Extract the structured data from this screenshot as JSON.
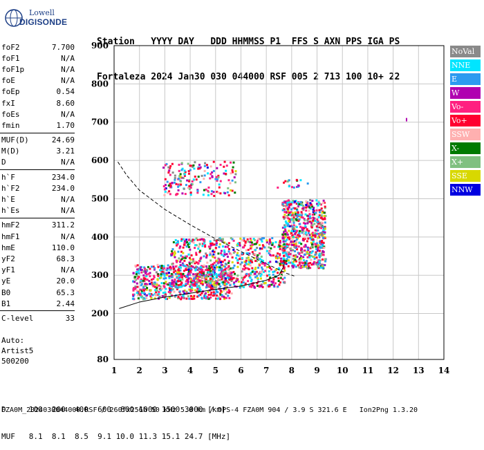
{
  "logo": {
    "line1": "Lowell",
    "line2": "DIGISONDE"
  },
  "header": {
    "line1": "Station   YYYY DAY   DDD HHMMSS P1  FFS S AXN PPS IGA PS",
    "line2": "Fortaleza 2024 Jan30 030 044000 RSF 005 2 713 100 10+ 22"
  },
  "params": [
    {
      "label": "foF2",
      "value": "7.700"
    },
    {
      "label": "foF1",
      "value": "N/A"
    },
    {
      "label": "foF1p",
      "value": "N/A"
    },
    {
      "label": "foE",
      "value": "N/A"
    },
    {
      "label": "foEp",
      "value": "0.54"
    },
    {
      "label": "fxI",
      "value": "8.60"
    },
    {
      "label": "foEs",
      "value": "N/A"
    },
    {
      "label": "fmin",
      "value": "1.70"
    },
    {
      "label": "MUF(D)",
      "value": "24.69"
    },
    {
      "label": "M(D)",
      "value": "3.21"
    },
    {
      "label": "D",
      "value": "N/A"
    },
    {
      "label": "h`F",
      "value": "234.0"
    },
    {
      "label": "h`F2",
      "value": "234.0"
    },
    {
      "label": "h`E",
      "value": "N/A"
    },
    {
      "label": "h`Es",
      "value": "N/A"
    },
    {
      "label": "hmF2",
      "value": "311.2"
    },
    {
      "label": "hmF1",
      "value": "N/A"
    },
    {
      "label": "hmE",
      "value": "110.0"
    },
    {
      "label": "yF2",
      "value": "68.3"
    },
    {
      "label": "yF1",
      "value": "N/A"
    },
    {
      "label": "yE",
      "value": "20.0"
    },
    {
      "label": "B0",
      "value": "65.3"
    },
    {
      "label": "B1",
      "value": "2.44"
    },
    {
      "label": "C-level",
      "value": "33"
    }
  ],
  "auto": {
    "line1": "Auto:",
    "line2": "Artist5",
    "line3": "500200"
  },
  "bottom": {
    "d_line": "D     100  200  400  600  800 1000 1500 3000 [km]",
    "muf_line": "MUF   8.1  8.1  8.5  9.1 10.0 11.3 15.1 24.7 [MHz]"
  },
  "footer": "FZA0M_2024030044000.RSF / 260fx256h 50 kHz 5.0 km / DPS-4 FZA0M 904 / 3.9 S 321.6 E   Ion2Png 1.3.20",
  "legend": [
    {
      "label": "NoVal",
      "color": "#8a8a8a"
    },
    {
      "label": "NNE",
      "color": "#00e5ff"
    },
    {
      "label": "E",
      "color": "#2c9bf0"
    },
    {
      "label": "W",
      "color": "#b000b0"
    },
    {
      "label": "Vo-",
      "color": "#ff2080"
    },
    {
      "label": "Vo+",
      "color": "#ff0030"
    },
    {
      "label": "SSW",
      "color": "#ffb0b0"
    },
    {
      "label": "X-",
      "color": "#007a00"
    },
    {
      "label": "X+",
      "color": "#80c080"
    },
    {
      "label": "SSE",
      "color": "#d8d800"
    },
    {
      "label": "NNW",
      "color": "#0000e0"
    }
  ],
  "chart_data": {
    "type": "scatter",
    "xlim": [
      1,
      14
    ],
    "ylim": [
      80,
      900
    ],
    "x_ticks": [
      1,
      2,
      3,
      4,
      5,
      6,
      7,
      8,
      9,
      10,
      11,
      12,
      13,
      14
    ],
    "y_ticks": [
      200,
      300,
      400,
      500,
      600,
      700,
      800,
      900
    ],
    "y_tick_labels": [
      "200",
      "300",
      "400",
      "500",
      "600",
      "700",
      "800",
      "900"
    ],
    "y_bottom_label": "80",
    "grid": true,
    "series": [
      {
        "name": "NoVal",
        "color": "#8a8a8a"
      },
      {
        "name": "NNE",
        "color": "#00e5ff"
      },
      {
        "name": "E",
        "color": "#2c9bf0"
      },
      {
        "name": "W",
        "color": "#b000b0"
      },
      {
        "name": "Vo-",
        "color": "#ff2080"
      },
      {
        "name": "Vo+",
        "color": "#ff0030"
      },
      {
        "name": "SSW",
        "color": "#ffb0b0"
      },
      {
        "name": "X-",
        "color": "#007a00"
      },
      {
        "name": "X+",
        "color": "#80c080"
      },
      {
        "name": "SSE",
        "color": "#d8d800"
      },
      {
        "name": "NNW",
        "color": "#0000e0"
      }
    ],
    "echo_regions": [
      {
        "x_range": [
          1.7,
          5.6
        ],
        "h_range": [
          240,
          330
        ],
        "density": "high"
      },
      {
        "x_range": [
          3.2,
          7.7
        ],
        "h_range": [
          270,
          400
        ],
        "density": "high"
      },
      {
        "x_range": [
          7.6,
          9.3
        ],
        "h_range": [
          320,
          500
        ],
        "density": "high"
      },
      {
        "x_range": [
          2.9,
          5.8
        ],
        "h_range": [
          510,
          600
        ],
        "density": "medium"
      },
      {
        "x_range": [
          7.4,
          8.6
        ],
        "h_range": [
          530,
          555
        ],
        "density": "low"
      }
    ],
    "isolated_point": {
      "x": 12.5,
      "y": 711
    },
    "profile_solid": [
      [
        1.2,
        213
      ],
      [
        2,
        230
      ],
      [
        3,
        243
      ],
      [
        4,
        253
      ],
      [
        5,
        263
      ],
      [
        6,
        272
      ],
      [
        7,
        287
      ],
      [
        7.5,
        300
      ],
      [
        7.7,
        325
      ],
      [
        7.7,
        340
      ]
    ],
    "profile_dashed": [
      [
        1.15,
        596
      ],
      [
        1.5,
        561
      ],
      [
        2,
        522
      ],
      [
        3,
        472
      ],
      [
        4,
        432
      ],
      [
        5,
        395
      ],
      [
        6,
        362
      ],
      [
        7,
        330
      ],
      [
        7.8,
        305
      ],
      [
        8.1,
        298
      ]
    ]
  }
}
